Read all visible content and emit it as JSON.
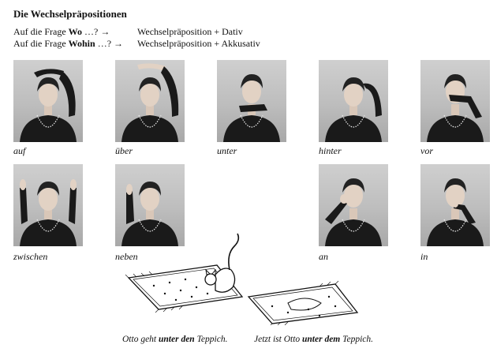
{
  "title": "Die Wechselpräpositionen",
  "rules": [
    {
      "prefix": "Auf die Frage ",
      "word": "Wo",
      "suffix": " …? →",
      "answer": "Wechselpräposition + Dativ"
    },
    {
      "prefix": "Auf die Frage ",
      "word": "Wohin",
      "suffix": " …? →",
      "answer": "Wechselpräposition + Akkusativ"
    }
  ],
  "photos": [
    {
      "label": "auf"
    },
    {
      "label": "über"
    },
    {
      "label": "unter"
    },
    {
      "label": "hinter"
    },
    {
      "label": "vor"
    },
    {
      "label": "zwischen"
    },
    {
      "label": "neben"
    },
    {
      "label": "an"
    },
    {
      "label": "in"
    }
  ],
  "captions": [
    {
      "pre": "Otto geht ",
      "bold": "unter den",
      "post": " Teppich."
    },
    {
      "pre": "Jetzt ist Otto ",
      "bold": "unter dem",
      "post": " Teppich."
    }
  ],
  "colors": {
    "photo_bg": "#c4c4c4",
    "sweater": "#1a1a1a",
    "text": "#111111"
  }
}
